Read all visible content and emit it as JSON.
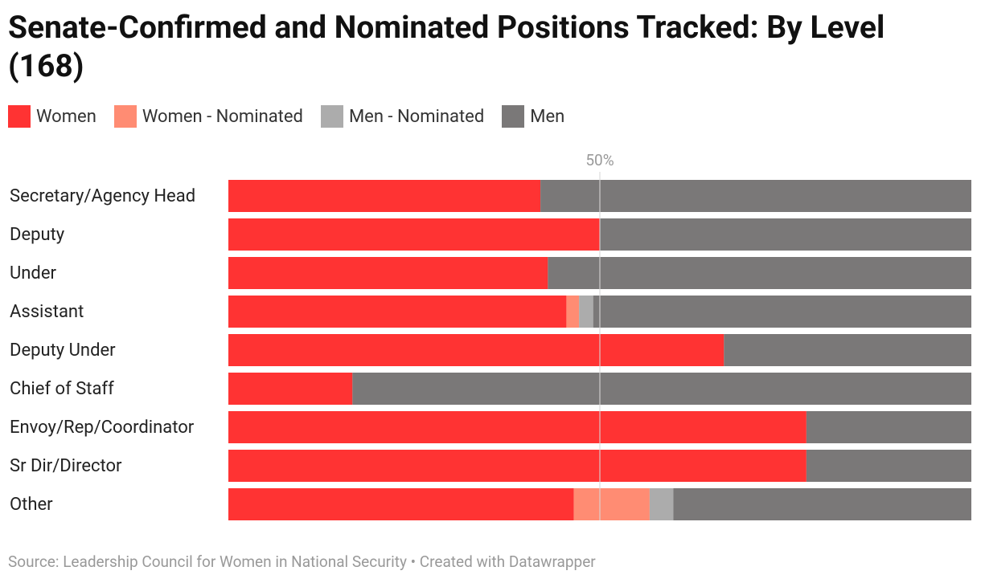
{
  "chart_data": {
    "type": "stacked-bar",
    "title": "Senate-Confirmed and Nominated Positions Tracked: By Level (168)",
    "categories": [
      "Secretary/Agency Head",
      "Deputy",
      "Under",
      "Assistant",
      "Deputy Under",
      "Chief of Staff",
      "Envoy/Rep/Coordinator",
      "Sr Dir/Director",
      "Other"
    ],
    "series": [
      {
        "name": "Women",
        "color": "#ff3333",
        "values": [
          42,
          50,
          43,
          45.5,
          66.7,
          16.7,
          77.8,
          77.8,
          46.5
        ]
      },
      {
        "name": "Women - Nominated",
        "color": "#ff8c73",
        "values": [
          0,
          0,
          0,
          1.7,
          0,
          0,
          0,
          0,
          10.2
        ]
      },
      {
        "name": "Men - Nominated",
        "color": "#acacac",
        "values": [
          0,
          0,
          0,
          1.9,
          0,
          0,
          0,
          0,
          3.2
        ]
      },
      {
        "name": "Men",
        "color": "#7a7878",
        "values": [
          58,
          50,
          57,
          50.9,
          33.3,
          83.3,
          22.2,
          22.2,
          40.1
        ]
      }
    ],
    "xlim": [
      0,
      100
    ],
    "xticks": [
      {
        "value": 50,
        "label": "50%"
      }
    ],
    "grid": true,
    "source": "Source: Leadership Council for Women in National Security • Created with Datawrapper"
  }
}
